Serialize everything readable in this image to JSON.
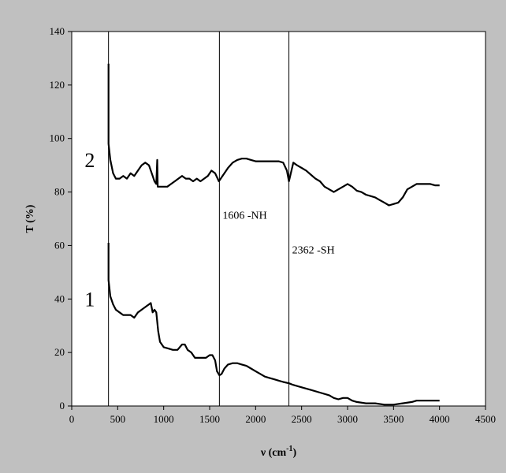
{
  "chart_data": {
    "type": "line",
    "title": "",
    "xlabel": "ν (cm",
    "xlabel_sup": "-1",
    "xlabel_close": ")",
    "ylabel": "T (%)",
    "xlim": [
      0,
      4500
    ],
    "ylim": [
      0,
      140
    ],
    "x_ticks": [
      0,
      500,
      1000,
      1500,
      2000,
      2500,
      3000,
      3500,
      4000,
      4500
    ],
    "y_ticks": [
      0,
      20,
      40,
      60,
      80,
      100,
      120,
      140
    ],
    "grid": false,
    "background_color": "#c0c0c0",
    "plot_background_color": "#ffffff",
    "line_color": "#000000",
    "series": [
      {
        "name": "2",
        "label_position": [
          230,
          92
        ],
        "points": [
          [
            400,
            128
          ],
          [
            400,
            98
          ],
          [
            420,
            92
          ],
          [
            450,
            87
          ],
          [
            480,
            85
          ],
          [
            520,
            85
          ],
          [
            560,
            86
          ],
          [
            600,
            85
          ],
          [
            640,
            87
          ],
          [
            680,
            86
          ],
          [
            720,
            88
          ],
          [
            760,
            90
          ],
          [
            800,
            91
          ],
          [
            840,
            90
          ],
          [
            880,
            86
          ],
          [
            900,
            84
          ],
          [
            920,
            83
          ],
          [
            930,
            92
          ],
          [
            935,
            82
          ],
          [
            960,
            82
          ],
          [
            1000,
            82
          ],
          [
            1040,
            82
          ],
          [
            1080,
            83
          ],
          [
            1120,
            84
          ],
          [
            1160,
            85
          ],
          [
            1200,
            86
          ],
          [
            1240,
            85
          ],
          [
            1280,
            85
          ],
          [
            1320,
            84
          ],
          [
            1360,
            85
          ],
          [
            1400,
            84
          ],
          [
            1440,
            85
          ],
          [
            1480,
            86
          ],
          [
            1520,
            88
          ],
          [
            1560,
            87
          ],
          [
            1600,
            84
          ],
          [
            1620,
            85
          ],
          [
            1660,
            87
          ],
          [
            1700,
            89
          ],
          [
            1750,
            91
          ],
          [
            1800,
            92
          ],
          [
            1850,
            92.5
          ],
          [
            1900,
            92.5
          ],
          [
            1950,
            92
          ],
          [
            2000,
            91.5
          ],
          [
            2050,
            91.5
          ],
          [
            2100,
            91.5
          ],
          [
            2150,
            91.5
          ],
          [
            2200,
            91.5
          ],
          [
            2250,
            91.5
          ],
          [
            2300,
            91
          ],
          [
            2340,
            88
          ],
          [
            2362,
            84
          ],
          [
            2390,
            88
          ],
          [
            2410,
            91
          ],
          [
            2450,
            90
          ],
          [
            2500,
            89
          ],
          [
            2550,
            88
          ],
          [
            2600,
            86.5
          ],
          [
            2650,
            85
          ],
          [
            2700,
            84
          ],
          [
            2750,
            82
          ],
          [
            2800,
            81
          ],
          [
            2850,
            80
          ],
          [
            2900,
            81
          ],
          [
            2950,
            82
          ],
          [
            3000,
            83
          ],
          [
            3050,
            82
          ],
          [
            3100,
            80.5
          ],
          [
            3150,
            80
          ],
          [
            3200,
            79
          ],
          [
            3250,
            78.5
          ],
          [
            3300,
            78
          ],
          [
            3350,
            77
          ],
          [
            3400,
            76
          ],
          [
            3450,
            75
          ],
          [
            3500,
            75.5
          ],
          [
            3550,
            76
          ],
          [
            3600,
            78
          ],
          [
            3650,
            81
          ],
          [
            3700,
            82
          ],
          [
            3750,
            83
          ],
          [
            3800,
            83
          ],
          [
            3850,
            83
          ],
          [
            3900,
            83
          ],
          [
            3950,
            82.5
          ],
          [
            4000,
            82.5
          ]
        ]
      },
      {
        "name": "1",
        "label_position": [
          230,
          40
        ],
        "points": [
          [
            400,
            61
          ],
          [
            400,
            47
          ],
          [
            420,
            41
          ],
          [
            450,
            38
          ],
          [
            480,
            36
          ],
          [
            520,
            35
          ],
          [
            560,
            34
          ],
          [
            600,
            34
          ],
          [
            640,
            34
          ],
          [
            680,
            33
          ],
          [
            720,
            35
          ],
          [
            760,
            36
          ],
          [
            800,
            37
          ],
          [
            840,
            38
          ],
          [
            860,
            38.5
          ],
          [
            880,
            35
          ],
          [
            900,
            36
          ],
          [
            920,
            35
          ],
          [
            940,
            28
          ],
          [
            960,
            24
          ],
          [
            1000,
            22
          ],
          [
            1050,
            21.5
          ],
          [
            1100,
            21
          ],
          [
            1150,
            21
          ],
          [
            1200,
            23
          ],
          [
            1230,
            23
          ],
          [
            1260,
            21
          ],
          [
            1300,
            20
          ],
          [
            1340,
            18
          ],
          [
            1380,
            18
          ],
          [
            1420,
            18
          ],
          [
            1460,
            18
          ],
          [
            1500,
            19
          ],
          [
            1530,
            19
          ],
          [
            1560,
            17
          ],
          [
            1580,
            13
          ],
          [
            1606,
            11.5
          ],
          [
            1630,
            12
          ],
          [
            1660,
            14
          ],
          [
            1700,
            15.5
          ],
          [
            1750,
            16
          ],
          [
            1800,
            16
          ],
          [
            1850,
            15.5
          ],
          [
            1900,
            15
          ],
          [
            1950,
            14
          ],
          [
            2000,
            13
          ],
          [
            2050,
            12
          ],
          [
            2100,
            11
          ],
          [
            2150,
            10.5
          ],
          [
            2200,
            10
          ],
          [
            2250,
            9.5
          ],
          [
            2300,
            9
          ],
          [
            2362,
            8.5
          ],
          [
            2400,
            8
          ],
          [
            2500,
            7
          ],
          [
            2600,
            6
          ],
          [
            2700,
            5
          ],
          [
            2800,
            4
          ],
          [
            2850,
            3
          ],
          [
            2900,
            2.5
          ],
          [
            2950,
            3
          ],
          [
            3000,
            3
          ],
          [
            3050,
            2
          ],
          [
            3100,
            1.5
          ],
          [
            3200,
            1
          ],
          [
            3300,
            1
          ],
          [
            3400,
            0.5
          ],
          [
            3500,
            0.5
          ],
          [
            3600,
            1
          ],
          [
            3700,
            1.5
          ],
          [
            3750,
            2
          ],
          [
            3800,
            2
          ],
          [
            3900,
            2
          ],
          [
            4000,
            2
          ]
        ]
      }
    ],
    "vertical_lines": [
      {
        "x": 400,
        "label": ""
      },
      {
        "x": 1606,
        "label": "1606 -NH",
        "label_y": 70
      },
      {
        "x": 2362,
        "label": "2362 -SH",
        "label_y": 57
      }
    ]
  }
}
